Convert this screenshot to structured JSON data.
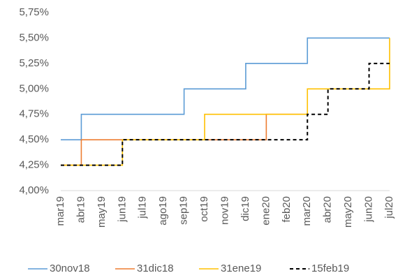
{
  "chart_data": {
    "type": "step-line",
    "categories": [
      "mar19",
      "abr19",
      "may19",
      "jun19",
      "jul19",
      "ago19",
      "sep19",
      "oct19",
      "nov19",
      "dic19",
      "ene20",
      "feb20",
      "mar20",
      "abr20",
      "may20",
      "jun20",
      "jul20"
    ],
    "series": [
      {
        "name": "30nov18",
        "color": "#5b9bd5",
        "dash": false,
        "values": [
          4.5,
          4.75,
          4.75,
          4.75,
          4.75,
          4.75,
          5.0,
          5.0,
          5.0,
          5.25,
          5.25,
          5.25,
          5.5,
          5.5,
          5.5,
          5.5,
          5.5
        ]
      },
      {
        "name": "31dic18",
        "color": "#ed7d31",
        "dash": false,
        "values": [
          4.25,
          4.5,
          4.5,
          4.5,
          4.5,
          4.5,
          4.5,
          4.5,
          4.5,
          4.5,
          4.75,
          4.75,
          4.75,
          null,
          null,
          null,
          null
        ]
      },
      {
        "name": "31ene19",
        "color": "#ffc000",
        "dash": false,
        "values": [
          4.25,
          4.25,
          4.25,
          4.5,
          4.5,
          4.5,
          4.5,
          4.75,
          4.75,
          4.75,
          4.75,
          4.75,
          5.0,
          5.0,
          5.0,
          5.0,
          5.5
        ]
      },
      {
        "name": "15feb19",
        "color": "#000000",
        "dash": true,
        "values": [
          4.25,
          4.25,
          4.25,
          4.5,
          4.5,
          4.5,
          4.5,
          4.5,
          4.5,
          4.5,
          4.5,
          4.5,
          4.75,
          5.0,
          5.0,
          5.25,
          5.25
        ]
      }
    ],
    "ylim": [
      4.0,
      5.75
    ],
    "yticks": [
      {
        "value": 4.0,
        "label": "4,00%"
      },
      {
        "value": 4.25,
        "label": "4,25%"
      },
      {
        "value": 4.5,
        "label": "4,50%"
      },
      {
        "value": 4.75,
        "label": "4,75%"
      },
      {
        "value": 5.0,
        "label": "5,00%"
      },
      {
        "value": 5.25,
        "label": "5,25%"
      },
      {
        "value": 5.5,
        "label": "5,50%"
      },
      {
        "value": 5.75,
        "label": "5,75%"
      }
    ],
    "grid": false,
    "legend": "bottom"
  }
}
